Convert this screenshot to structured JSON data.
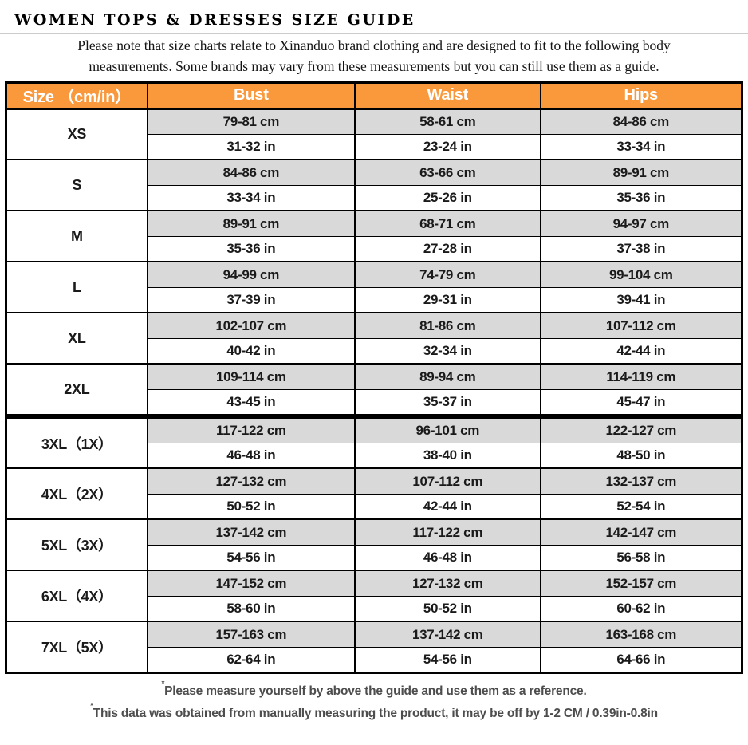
{
  "title": "WOMEN TOPS & DRESSES SIZE GUIDE",
  "subtitle": {
    "line1": "Please note that size charts relate to  Xinanduo brand clothing and are designed to fit to the following body",
    "line2": "measurements. Some brands may vary from these measurements but you can still use them as a guide."
  },
  "colors": {
    "header_bg": "#fa993c",
    "header_text": "#ffffff",
    "cm_row_bg": "#d9d9d9",
    "in_row_bg": "#ffffff",
    "border": "#000000",
    "divider_fill": "#c8c8c8",
    "note_text": "#4d4d4d"
  },
  "table": {
    "columns": [
      "Size （cm/in）",
      "Bust",
      "Waist",
      "Hips"
    ],
    "groups": [
      {
        "size": "XS",
        "cm": [
          "79-81 cm",
          "58-61 cm",
          "84-86 cm"
        ],
        "inch": [
          "31-32 in",
          "23-24 in",
          "33-34 in"
        ]
      },
      {
        "size": "S",
        "cm": [
          "84-86 cm",
          "63-66 cm",
          "89-91 cm"
        ],
        "inch": [
          "33-34 in",
          "25-26 in",
          "35-36 in"
        ]
      },
      {
        "size": "M",
        "cm": [
          "89-91 cm",
          "68-71 cm",
          "94-97 cm"
        ],
        "inch": [
          "35-36 in",
          "27-28 in",
          "37-38 in"
        ]
      },
      {
        "size": "L",
        "cm": [
          "94-99 cm",
          "74-79 cm",
          "99-104 cm"
        ],
        "inch": [
          "37-39 in",
          "29-31 in",
          "39-41 in"
        ]
      },
      {
        "size": "XL",
        "cm": [
          "102-107 cm",
          "81-86 cm",
          "107-112 cm"
        ],
        "inch": [
          "40-42 in",
          "32-34 in",
          "42-44 in"
        ]
      },
      {
        "size": "2XL",
        "cm": [
          "109-114 cm",
          "89-94 cm",
          "114-119 cm"
        ],
        "inch": [
          "43-45 in",
          "35-37 in",
          "45-47 in"
        ],
        "separator_after": true
      },
      {
        "size": "3XL（1X）",
        "cm": [
          "117-122 cm",
          "96-101 cm",
          "122-127 cm"
        ],
        "inch": [
          "46-48 in",
          "38-40 in",
          "48-50 in"
        ]
      },
      {
        "size": "4XL（2X）",
        "cm": [
          "127-132 cm",
          "107-112 cm",
          "132-137 cm"
        ],
        "inch": [
          "50-52 in",
          "42-44 in",
          "52-54 in"
        ]
      },
      {
        "size": "5XL（3X）",
        "cm": [
          "137-142 cm",
          "117-122 cm",
          "142-147 cm"
        ],
        "inch": [
          "54-56 in",
          "46-48 in",
          "56-58 in"
        ]
      },
      {
        "size": "6XL（4X）",
        "cm": [
          "147-152 cm",
          "127-132 cm",
          "152-157 cm"
        ],
        "inch": [
          "58-60 in",
          "50-52 in",
          "60-62 in"
        ]
      },
      {
        "size": "7XL（5X）",
        "cm": [
          "157-163 cm",
          "137-142 cm",
          "163-168 cm"
        ],
        "inch": [
          "62-64 in",
          "54-56 in",
          "64-66 in"
        ]
      }
    ]
  },
  "notes": [
    {
      "mark": "*",
      "text": "Please measure yourself by above the guide and use them as a reference."
    },
    {
      "mark": "*",
      "text": "This data was obtained from manually measuring the product, it may be off by 1-2 CM / 0.39in-0.8in"
    }
  ]
}
